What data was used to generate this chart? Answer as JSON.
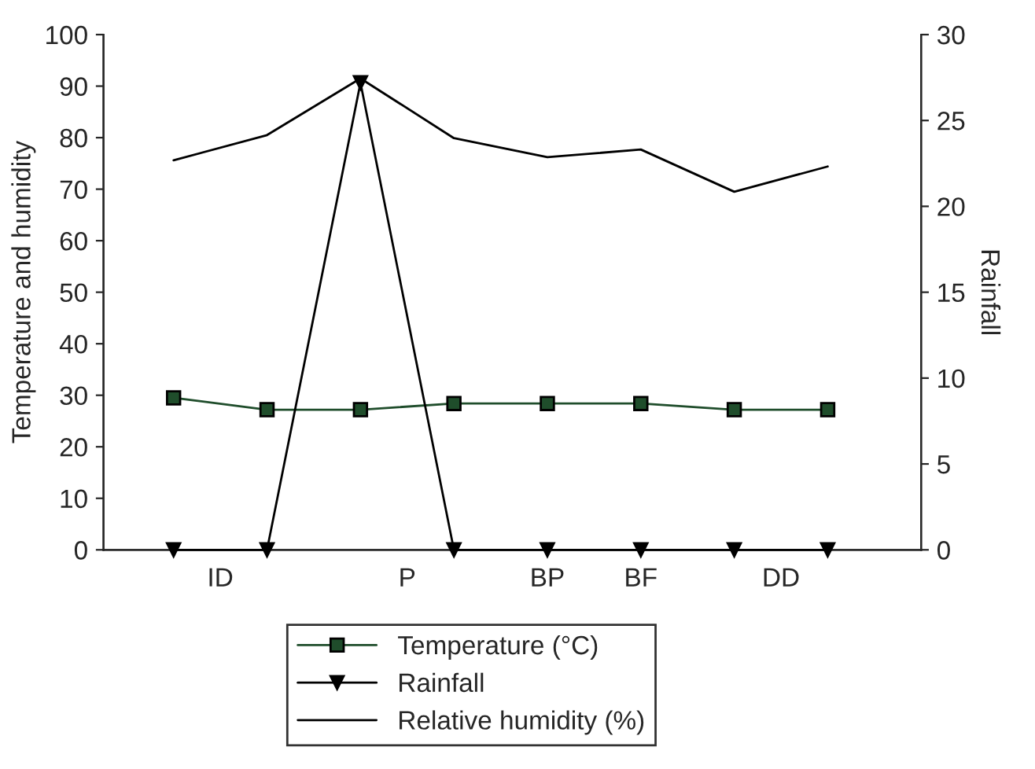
{
  "chart_data": {
    "type": "line",
    "ylabel": "Temperature and humidity",
    "y2label": "Rainfall",
    "categories": [
      null,
      "ID",
      null,
      null,
      null,
      "P",
      null,
      null,
      "BP",
      null,
      "BF",
      null,
      null,
      "DD",
      null
    ],
    "ylim": [
      0,
      100
    ],
    "yticks": [
      0,
      10,
      20,
      30,
      40,
      50,
      60,
      70,
      80,
      90,
      100
    ],
    "y2lim": [
      0,
      30
    ],
    "y2ticks": [
      0,
      5,
      10,
      15,
      20,
      25,
      30
    ],
    "series": [
      {
        "name": "Temperature (°C)",
        "color": "#1f4d2b",
        "marker": "square",
        "values": [
          29.5,
          null,
          27.2,
          null,
          27.2,
          null,
          28.4,
          null,
          28.4,
          null,
          28.4,
          null,
          27.2,
          null,
          27.2
        ]
      },
      {
        "name": "Rainfall",
        "color": "#000000",
        "marker": "triangle",
        "axis": "y2",
        "values": [
          0,
          null,
          0,
          null,
          27.2,
          null,
          0,
          null,
          0,
          null,
          0,
          null,
          0,
          null,
          0
        ]
      },
      {
        "name": "Relative humidity (%)",
        "color": "#000000",
        "marker": "none",
        "values": [
          75.6,
          null,
          80.5,
          null,
          91.5,
          null,
          79.9,
          null,
          76.2,
          null,
          77.7,
          null,
          69.5,
          null,
          74.4
        ]
      }
    ],
    "grid": false,
    "legend": "bottom"
  }
}
